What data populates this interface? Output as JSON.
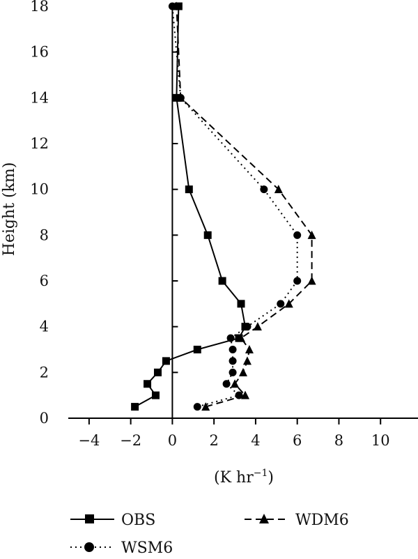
{
  "chart_data": {
    "type": "line",
    "title": "",
    "xlabel": "(K hr",
    "xlabel_sup": "−1",
    "xlabel_close": ")",
    "ylabel": "Height (km)",
    "xlim": [
      -5,
      11.8
    ],
    "ylim": [
      0,
      18
    ],
    "xticks": [
      -4,
      -2,
      0,
      2,
      4,
      6,
      8,
      10
    ],
    "xtick_labels": [
      "−4",
      "−2",
      "0",
      "2",
      "4",
      "6",
      "8",
      "10"
    ],
    "yticks": [
      0,
      2,
      4,
      6,
      8,
      10,
      12,
      14,
      16,
      18
    ],
    "ytick_labels": [
      "0",
      "2",
      "4",
      "6",
      "8",
      "10",
      "12",
      "14",
      "16",
      "18"
    ],
    "grid": false,
    "legend_position": "bottom",
    "series": [
      {
        "name": "OBS",
        "marker": "square",
        "dash": "solid",
        "points": [
          [
            -1.8,
            0.5
          ],
          [
            -0.8,
            1.0
          ],
          [
            -1.2,
            1.5
          ],
          [
            -0.7,
            2.0
          ],
          [
            -0.3,
            2.5
          ],
          [
            1.2,
            3.0
          ],
          [
            3.2,
            3.5
          ],
          [
            3.5,
            4.0
          ],
          [
            3.3,
            5.0
          ],
          [
            2.4,
            6.0
          ],
          [
            1.7,
            8.0
          ],
          [
            0.8,
            10.0
          ],
          [
            0.2,
            14.0
          ],
          [
            0.3,
            18.0
          ]
        ]
      },
      {
        "name": "WSM6",
        "marker": "circle",
        "dash": "dotted",
        "points": [
          [
            1.2,
            0.5
          ],
          [
            3.2,
            1.0
          ],
          [
            2.6,
            1.5
          ],
          [
            2.9,
            2.0
          ],
          [
            2.9,
            2.5
          ],
          [
            2.9,
            3.0
          ],
          [
            2.8,
            3.5
          ],
          [
            3.6,
            4.0
          ],
          [
            5.2,
            5.0
          ],
          [
            6.0,
            6.0
          ],
          [
            6.0,
            8.0
          ],
          [
            4.4,
            10.0
          ],
          [
            0.4,
            14.0
          ],
          [
            0.0,
            18.0
          ]
        ]
      },
      {
        "name": "WDM6",
        "marker": "triangle",
        "dash": "dashed",
        "points": [
          [
            1.6,
            0.5
          ],
          [
            3.5,
            1.0
          ],
          [
            3.0,
            1.5
          ],
          [
            3.4,
            2.0
          ],
          [
            3.6,
            2.5
          ],
          [
            3.7,
            3.0
          ],
          [
            3.3,
            3.5
          ],
          [
            4.1,
            4.0
          ],
          [
            5.6,
            5.0
          ],
          [
            6.7,
            6.0
          ],
          [
            6.7,
            8.0
          ],
          [
            5.1,
            10.0
          ],
          [
            0.4,
            14.0
          ],
          [
            0.2,
            18.0
          ]
        ]
      }
    ]
  },
  "legend": {
    "items": [
      {
        "label": "OBS"
      },
      {
        "label": "WDM6"
      },
      {
        "label": "WSM6"
      }
    ]
  }
}
